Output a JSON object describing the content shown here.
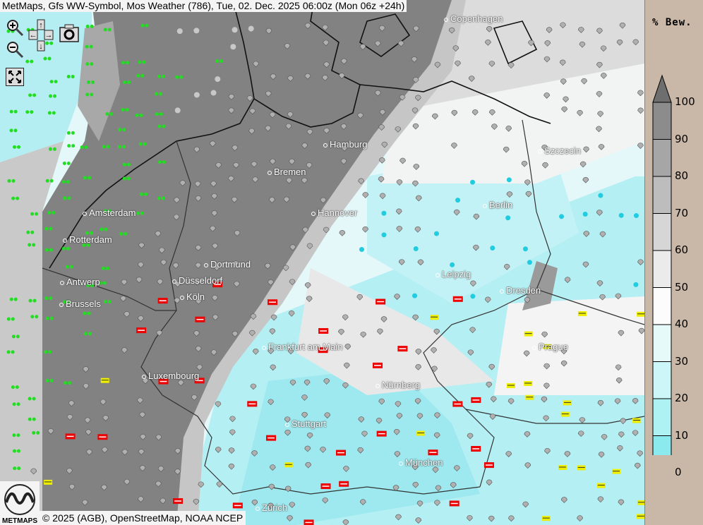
{
  "title": "MetMaps, Gfs WW-Symbol, Mos Weather (786), Tue, 02. Dec. 2025 06:00z (Mon 06z +24h)",
  "controls": {
    "zoom_in": "zoom-in-icon",
    "zoom_out": "zoom-out-icon",
    "pan": "pan-arrows-icon",
    "screenshot": "camera-icon",
    "fullscreen": "fullscreen-icon"
  },
  "cities": [
    {
      "name": "Copenhagen"
    },
    {
      "name": "Hamburg"
    },
    {
      "name": "Bremen"
    },
    {
      "name": "Hannover"
    },
    {
      "name": "Szczecin"
    },
    {
      "name": "Berlin"
    },
    {
      "name": "Amsterdam"
    },
    {
      "name": "Rotterdam"
    },
    {
      "name": "Dortmund"
    },
    {
      "name": "Düsseldorf"
    },
    {
      "name": "Antwerp"
    },
    {
      "name": "Köln"
    },
    {
      "name": "Brussels"
    },
    {
      "name": "Leipzig"
    },
    {
      "name": "Dresden"
    },
    {
      "name": "Frankfurt am Main"
    },
    {
      "name": "Prague"
    },
    {
      "name": "Luxembourg"
    },
    {
      "name": "Nürnberg"
    },
    {
      "name": "Stuttgart"
    },
    {
      "name": "München"
    },
    {
      "name": "Zürich"
    }
  ],
  "legend": {
    "title": "% Bew.",
    "ticks": [
      "100",
      "90",
      "80",
      "70",
      "60",
      "50",
      "40",
      "30",
      "20",
      "10",
      "0"
    ],
    "colors": [
      "#6e6e6e",
      "#8c8c8c",
      "#a6a6a6",
      "#bdbdbd",
      "#d6d6d6",
      "#ebebeb",
      "#fcfcfc",
      "#e6fafa",
      "#cdf6f8",
      "#aef2f4",
      "#8aeaee",
      "#66d6ee"
    ]
  },
  "logo_text": "METMAPS",
  "copyright": "© 2025 (AGB), OpenStreetMap, NOAA NCEP"
}
